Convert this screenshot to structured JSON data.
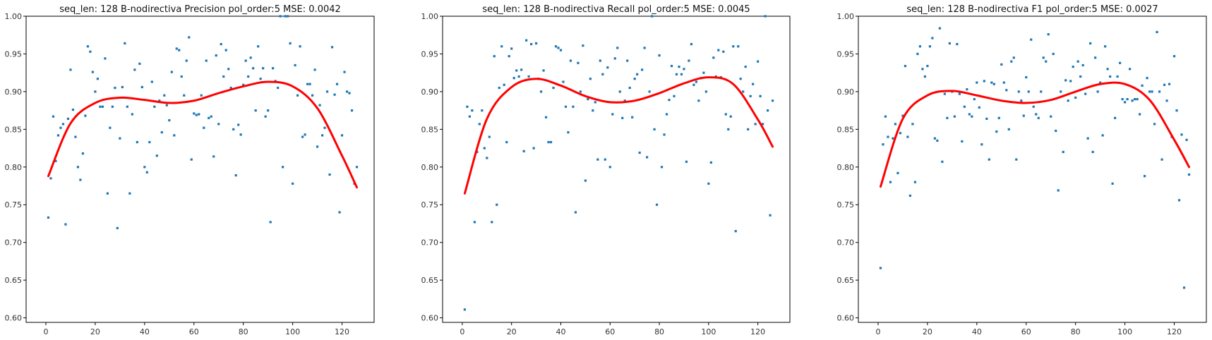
{
  "chart_data": [
    {
      "type": "scatter",
      "title": "seq_len: 128    B-nodirectiva   Precision   pol_order:5   MSE: 0.0042",
      "xlim": [
        -8,
        133
      ],
      "ylim": [
        0.594,
        1.0
      ],
      "xticks": [
        0,
        20,
        40,
        60,
        80,
        100,
        120
      ],
      "yticks": [
        0.6,
        0.65,
        0.7,
        0.75,
        0.8,
        0.85,
        0.9,
        0.95,
        1.0
      ],
      "grid": false,
      "colors": {
        "points": "#1f77b4",
        "fit": "#ff0000"
      },
      "fit": {
        "type": "polynomial",
        "order": 5,
        "x": [
          1,
          10,
          20,
          30,
          40,
          50,
          60,
          70,
          80,
          90,
          100,
          110,
          120,
          126
        ],
        "y": [
          0.788,
          0.858,
          0.885,
          0.892,
          0.889,
          0.885,
          0.888,
          0.898,
          0.907,
          0.913,
          0.907,
          0.878,
          0.815,
          0.773
        ]
      },
      "points": {
        "x": [
          1,
          2,
          3,
          4,
          5,
          6,
          7,
          8,
          9,
          10,
          11,
          12,
          13,
          14,
          15,
          16,
          17,
          18,
          19,
          20,
          21,
          22,
          23,
          24,
          25,
          26,
          27,
          28,
          29,
          30,
          31,
          32,
          33,
          34,
          35,
          36,
          37,
          38,
          39,
          40,
          41,
          42,
          43,
          44,
          45,
          46,
          47,
          48,
          49,
          50,
          51,
          52,
          53,
          54,
          55,
          56,
          57,
          58,
          59,
          60,
          61,
          62,
          63,
          64,
          65,
          66,
          67,
          68,
          69,
          70,
          71,
          72,
          73,
          74,
          75,
          76,
          77,
          78,
          79,
          80,
          81,
          82,
          83,
          84,
          85,
          86,
          87,
          88,
          89,
          90,
          91,
          92,
          93,
          94,
          95,
          96,
          97,
          98,
          99,
          100,
          101,
          102,
          103,
          104,
          105,
          106,
          107,
          108,
          109,
          110,
          111,
          112,
          113,
          114,
          115,
          116,
          117,
          118,
          119,
          120,
          121,
          122,
          123,
          124,
          125,
          126
        ],
        "y": [
          0.733,
          0.785,
          0.867,
          0.808,
          0.842,
          0.852,
          0.857,
          0.724,
          0.864,
          0.929,
          0.876,
          0.84,
          0.8,
          0.783,
          0.818,
          0.868,
          0.96,
          0.953,
          0.926,
          0.9,
          0.917,
          0.88,
          0.88,
          0.944,
          0.765,
          0.852,
          0.88,
          0.905,
          0.719,
          0.838,
          0.906,
          0.964,
          0.88,
          0.765,
          0.87,
          0.929,
          0.833,
          0.937,
          0.906,
          0.8,
          0.793,
          0.833,
          0.913,
          0.88,
          0.815,
          0.888,
          0.846,
          0.895,
          0.882,
          0.862,
          0.926,
          0.842,
          0.957,
          0.955,
          0.92,
          0.895,
          0.941,
          0.972,
          0.81,
          0.871,
          0.869,
          0.87,
          0.895,
          0.852,
          0.941,
          0.865,
          0.867,
          0.814,
          0.948,
          0.857,
          0.963,
          0.92,
          0.955,
          0.93,
          0.905,
          0.85,
          0.789,
          0.856,
          0.843,
          0.909,
          0.941,
          0.92,
          0.945,
          0.931,
          0.875,
          0.96,
          0.917,
          0.931,
          0.867,
          0.875,
          0.727,
          0.931,
          0.914,
          0.905,
          1.0,
          0.8,
          1.0,
          1.0,
          0.964,
          0.778,
          0.935,
          0.895,
          0.96,
          0.84,
          0.843,
          0.91,
          0.91,
          0.895,
          0.929,
          0.827,
          0.882,
          0.842,
          0.852,
          0.9,
          0.79,
          0.959,
          0.896,
          0.91,
          0.74,
          0.842,
          0.926,
          0.9,
          0.898,
          0.875,
          0.778,
          0.8
        ]
      }
    },
    {
      "type": "scatter",
      "title": "seq_len: 128    B-nodirectiva   Recall   pol_order:5   MSE: 0.0045",
      "xlim": [
        -8,
        133
      ],
      "ylim": [
        0.594,
        1.0
      ],
      "xticks": [
        0,
        20,
        40,
        60,
        80,
        100,
        120
      ],
      "yticks": [
        0.6,
        0.65,
        0.7,
        0.75,
        0.8,
        0.85,
        0.9,
        0.95,
        1.0
      ],
      "grid": false,
      "colors": {
        "points": "#1f77b4",
        "fit": "#ff0000"
      },
      "fit": {
        "type": "polynomial",
        "order": 5,
        "x": [
          1,
          10,
          20,
          30,
          40,
          50,
          60,
          70,
          80,
          90,
          100,
          110,
          120,
          126
        ],
        "y": [
          0.765,
          0.864,
          0.906,
          0.917,
          0.908,
          0.894,
          0.886,
          0.888,
          0.898,
          0.911,
          0.919,
          0.91,
          0.863,
          0.827
        ]
      },
      "points": {
        "x": [
          1,
          2,
          3,
          4,
          5,
          6,
          7,
          8,
          9,
          10,
          11,
          12,
          13,
          14,
          15,
          16,
          17,
          18,
          19,
          20,
          21,
          22,
          23,
          24,
          25,
          26,
          27,
          28,
          29,
          30,
          31,
          32,
          33,
          34,
          35,
          36,
          37,
          38,
          39,
          40,
          41,
          42,
          43,
          44,
          45,
          46,
          47,
          48,
          49,
          50,
          51,
          52,
          53,
          54,
          55,
          56,
          57,
          58,
          59,
          60,
          61,
          62,
          63,
          64,
          65,
          66,
          67,
          68,
          69,
          70,
          71,
          72,
          73,
          74,
          75,
          76,
          77,
          78,
          79,
          80,
          81,
          82,
          83,
          84,
          85,
          86,
          87,
          88,
          89,
          90,
          91,
          92,
          93,
          94,
          95,
          96,
          97,
          98,
          99,
          100,
          101,
          102,
          103,
          104,
          105,
          106,
          107,
          108,
          109,
          110,
          111,
          112,
          113,
          114,
          115,
          116,
          117,
          118,
          119,
          120,
          121,
          122,
          123,
          124,
          125,
          126
        ],
        "y": [
          0.611,
          0.88,
          0.867,
          0.875,
          0.727,
          0.82,
          0.857,
          0.875,
          0.825,
          0.812,
          0.84,
          0.727,
          0.947,
          0.75,
          0.905,
          0.96,
          0.909,
          0.833,
          0.947,
          0.957,
          0.918,
          0.928,
          0.92,
          0.929,
          0.821,
          0.968,
          0.92,
          0.963,
          0.825,
          0.964,
          0.917,
          0.9,
          0.928,
          0.866,
          0.833,
          0.833,
          0.905,
          0.96,
          0.958,
          0.955,
          0.913,
          0.88,
          0.846,
          0.941,
          0.88,
          0.74,
          0.938,
          0.9,
          0.961,
          0.782,
          0.89,
          0.917,
          0.875,
          0.886,
          0.81,
          0.941,
          0.923,
          0.81,
          0.932,
          0.8,
          0.87,
          0.944,
          0.958,
          0.9,
          0.865,
          0.888,
          0.941,
          0.905,
          0.866,
          0.917,
          0.923,
          0.819,
          0.929,
          0.958,
          0.813,
          0.9,
          1.0,
          0.85,
          0.75,
          0.948,
          0.8,
          0.843,
          0.87,
          0.889,
          0.934,
          0.894,
          0.923,
          0.933,
          0.923,
          0.93,
          0.807,
          0.941,
          0.963,
          0.909,
          0.913,
          0.888,
          0.918,
          0.925,
          0.9,
          0.778,
          0.806,
          0.945,
          0.92,
          0.955,
          0.919,
          0.953,
          0.87,
          0.85,
          0.867,
          0.96,
          0.715,
          0.96,
          0.917,
          0.9,
          0.933,
          0.85,
          0.894,
          0.91,
          0.857,
          0.94,
          0.894,
          0.857,
          1.0,
          0.875,
          0.736,
          0.888
        ]
      }
    },
    {
      "type": "scatter",
      "title": "seq_len: 128    B-nodirectiva   F1   pol_order:5   MSE: 0.0027",
      "xlim": [
        -8,
        133
      ],
      "ylim": [
        0.594,
        1.0
      ],
      "xticks": [
        0,
        20,
        40,
        60,
        80,
        100,
        120
      ],
      "yticks": [
        0.6,
        0.65,
        0.7,
        0.75,
        0.8,
        0.85,
        0.9,
        0.95,
        1.0
      ],
      "grid": false,
      "colors": {
        "points": "#1f77b4",
        "fit": "#ff0000"
      },
      "fit": {
        "type": "polynomial",
        "order": 5,
        "x": [
          1,
          10,
          20,
          30,
          40,
          50,
          60,
          70,
          80,
          90,
          100,
          110,
          120,
          126
        ],
        "y": [
          0.774,
          0.864,
          0.895,
          0.901,
          0.895,
          0.888,
          0.885,
          0.889,
          0.9,
          0.91,
          0.91,
          0.889,
          0.836,
          0.8
        ]
      },
      "points": {
        "x": [
          1,
          2,
          3,
          4,
          5,
          6,
          7,
          8,
          9,
          10,
          11,
          12,
          13,
          14,
          15,
          16,
          17,
          18,
          19,
          20,
          21,
          22,
          23,
          24,
          25,
          26,
          27,
          28,
          29,
          30,
          31,
          32,
          33,
          34,
          35,
          36,
          37,
          38,
          39,
          40,
          41,
          42,
          43,
          44,
          45,
          46,
          47,
          48,
          49,
          50,
          51,
          52,
          53,
          54,
          55,
          56,
          57,
          58,
          59,
          60,
          61,
          62,
          63,
          64,
          65,
          66,
          67,
          68,
          69,
          70,
          71,
          72,
          73,
          74,
          75,
          76,
          77,
          78,
          79,
          80,
          81,
          82,
          83,
          84,
          85,
          86,
          87,
          88,
          89,
          90,
          91,
          92,
          93,
          94,
          95,
          96,
          97,
          98,
          99,
          100,
          101,
          102,
          103,
          104,
          105,
          106,
          107,
          108,
          109,
          110,
          111,
          112,
          113,
          114,
          115,
          116,
          117,
          118,
          119,
          120,
          121,
          122,
          123,
          124,
          125,
          126
        ],
        "y": [
          0.666,
          0.83,
          0.867,
          0.84,
          0.78,
          0.838,
          0.857,
          0.792,
          0.845,
          0.868,
          0.934,
          0.84,
          0.762,
          0.857,
          0.78,
          0.95,
          0.96,
          0.93,
          0.92,
          0.934,
          0.96,
          0.971,
          0.838,
          0.835,
          0.984,
          0.807,
          0.897,
          0.865,
          0.964,
          0.9,
          0.867,
          0.963,
          0.897,
          0.834,
          0.88,
          0.903,
          0.87,
          0.867,
          0.89,
          0.912,
          0.879,
          0.83,
          0.914,
          0.864,
          0.81,
          0.912,
          0.91,
          0.847,
          0.865,
          0.936,
          0.912,
          0.902,
          0.85,
          0.94,
          0.945,
          0.81,
          0.9,
          0.888,
          0.868,
          0.919,
          0.9,
          0.969,
          0.88,
          0.87,
          0.865,
          0.9,
          0.945,
          0.94,
          0.976,
          0.867,
          0.95,
          0.848,
          0.769,
          0.9,
          0.82,
          0.915,
          0.888,
          0.914,
          0.933,
          0.892,
          0.94,
          0.92,
          0.935,
          0.897,
          0.838,
          0.964,
          0.82,
          0.945,
          0.9,
          0.912,
          0.842,
          0.96,
          0.93,
          0.92,
          0.778,
          0.865,
          0.92,
          0.938,
          0.89,
          0.886,
          0.89,
          0.93,
          0.888,
          0.89,
          0.89,
          0.87,
          0.908,
          0.788,
          0.918,
          0.9,
          0.9,
          0.857,
          0.979,
          0.9,
          0.81,
          0.909,
          0.888,
          0.91,
          0.84,
          0.947,
          0.875,
          0.756,
          0.843,
          0.64,
          0.836,
          0.79
        ]
      }
    }
  ]
}
